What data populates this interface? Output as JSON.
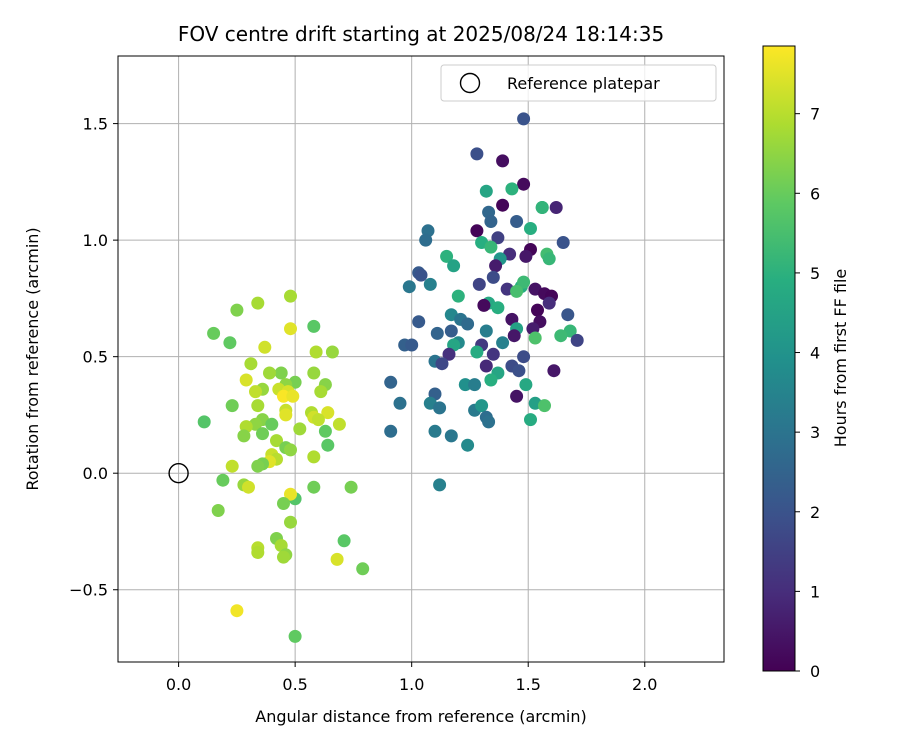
{
  "chart_data": {
    "type": "scatter",
    "title": "FOV centre drift starting at 2025/08/24 18:14:35",
    "xlabel": "Angular distance from reference (arcmin)",
    "ylabel": "Rotation from reference (arcmin)",
    "xlim": [
      -0.26,
      2.34
    ],
    "ylim": [
      -0.81,
      1.79
    ],
    "x_ticks": [
      0.0,
      0.5,
      1.0,
      1.5,
      2.0
    ],
    "x_tick_labels": [
      "0.0",
      "0.5",
      "1.0",
      "1.5",
      "2.0"
    ],
    "y_ticks": [
      -0.5,
      0.0,
      0.5,
      1.0,
      1.5
    ],
    "y_tick_labels": [
      "−0.5",
      "0.0",
      "0.5",
      "1.0",
      "1.5"
    ],
    "grid": true,
    "legend": {
      "placement": "top-right",
      "entries": [
        "Reference platepar"
      ]
    },
    "colorbar": {
      "label": "Hours from first FF file",
      "range": [
        0,
        7.85
      ],
      "ticks": [
        0,
        1,
        2,
        3,
        4,
        5,
        6,
        7
      ],
      "tick_labels": [
        "0",
        "1",
        "2",
        "3",
        "4",
        "5",
        "6",
        "7"
      ],
      "colormap": "viridis"
    },
    "reference": {
      "name": "Reference platepar",
      "x": 0.0,
      "y": 0.0
    },
    "series": [
      {
        "name": "FF files",
        "points": [
          [
            1.48,
            1.52,
            2.0
          ],
          [
            1.28,
            1.37,
            1.9
          ],
          [
            1.39,
            1.34,
            0.3
          ],
          [
            1.48,
            1.24,
            0.2
          ],
          [
            1.43,
            1.22,
            5.0
          ],
          [
            1.32,
            1.21,
            4.6
          ],
          [
            1.62,
            1.14,
            0.8
          ],
          [
            1.39,
            1.15,
            0.1
          ],
          [
            1.56,
            1.14,
            5.0
          ],
          [
            1.33,
            1.12,
            2.6
          ],
          [
            1.45,
            1.08,
            2.3
          ],
          [
            1.34,
            1.08,
            2.5
          ],
          [
            1.51,
            1.05,
            4.9
          ],
          [
            1.28,
            1.04,
            0.1
          ],
          [
            1.07,
            1.04,
            2.9
          ],
          [
            1.37,
            1.01,
            1.5
          ],
          [
            1.3,
            0.99,
            4.9
          ],
          [
            1.06,
            1.0,
            2.8
          ],
          [
            1.65,
            0.99,
            2.0
          ],
          [
            1.34,
            0.97,
            5.2
          ],
          [
            1.51,
            0.96,
            0.1
          ],
          [
            1.58,
            0.94,
            5.4
          ],
          [
            1.42,
            0.94,
            1.0
          ],
          [
            1.49,
            0.93,
            0.5
          ],
          [
            1.59,
            0.92,
            5.2
          ],
          [
            1.15,
            0.93,
            5.0
          ],
          [
            1.38,
            0.92,
            4.1
          ],
          [
            1.18,
            0.89,
            4.5
          ],
          [
            1.36,
            0.89,
            0.6
          ],
          [
            1.03,
            0.86,
            2.2
          ],
          [
            1.04,
            0.85,
            2.0
          ],
          [
            1.35,
            0.84,
            1.8
          ],
          [
            1.29,
            0.81,
            1.6
          ],
          [
            1.08,
            0.81,
            3.4
          ],
          [
            0.99,
            0.8,
            3.1
          ],
          [
            1.47,
            0.8,
            4.9
          ],
          [
            1.41,
            0.79,
            1.2
          ],
          [
            1.53,
            0.79,
            0.4
          ],
          [
            1.57,
            0.77,
            0.2
          ],
          [
            1.6,
            0.76,
            0.1
          ],
          [
            1.2,
            0.76,
            5.0
          ],
          [
            1.48,
            0.82,
            5.3
          ],
          [
            1.45,
            0.78,
            5.5
          ],
          [
            1.33,
            0.73,
            4.7
          ],
          [
            1.31,
            0.72,
            0.2
          ],
          [
            1.59,
            0.73,
            1.0
          ],
          [
            1.37,
            0.71,
            4.9
          ],
          [
            1.54,
            0.7,
            0.1
          ],
          [
            1.67,
            0.68,
            2.1
          ],
          [
            1.17,
            0.68,
            3.6
          ],
          [
            1.21,
            0.66,
            3.0
          ],
          [
            1.43,
            0.66,
            0.4
          ],
          [
            1.55,
            0.65,
            0.3
          ],
          [
            1.03,
            0.65,
            2.2
          ],
          [
            1.24,
            0.64,
            2.7
          ],
          [
            1.45,
            0.62,
            4.5
          ],
          [
            1.52,
            0.62,
            0.6
          ],
          [
            1.17,
            0.61,
            2.3
          ],
          [
            1.11,
            0.6,
            2.5
          ],
          [
            1.32,
            0.61,
            3.3
          ],
          [
            1.68,
            0.61,
            5.2
          ],
          [
            1.64,
            0.59,
            5.3
          ],
          [
            1.44,
            0.59,
            0.5
          ],
          [
            1.53,
            0.58,
            5.6
          ],
          [
            1.71,
            0.57,
            1.6
          ],
          [
            1.2,
            0.56,
            3.7
          ],
          [
            1.39,
            0.56,
            3.4
          ],
          [
            0.97,
            0.55,
            2.4
          ],
          [
            1.0,
            0.55,
            2.2
          ],
          [
            1.3,
            0.55,
            1.3
          ],
          [
            1.18,
            0.55,
            4.6
          ],
          [
            1.16,
            0.51,
            1.1
          ],
          [
            1.28,
            0.52,
            4.8
          ],
          [
            1.35,
            0.51,
            1.2
          ],
          [
            1.48,
            0.5,
            1.8
          ],
          [
            1.1,
            0.48,
            3.0
          ],
          [
            1.13,
            0.47,
            1.7
          ],
          [
            1.32,
            0.46,
            0.9
          ],
          [
            1.43,
            0.46,
            1.8
          ],
          [
            1.61,
            0.44,
            0.5
          ],
          [
            1.46,
            0.44,
            1.9
          ],
          [
            1.37,
            0.43,
            4.6
          ],
          [
            1.34,
            0.4,
            4.9
          ],
          [
            0.91,
            0.39,
            2.5
          ],
          [
            1.23,
            0.38,
            3.9
          ],
          [
            1.27,
            0.38,
            3.3
          ],
          [
            1.49,
            0.38,
            4.7
          ],
          [
            1.1,
            0.34,
            2.4
          ],
          [
            1.45,
            0.33,
            0.4
          ],
          [
            1.53,
            0.3,
            4.4
          ],
          [
            0.95,
            0.3,
            2.9
          ],
          [
            1.08,
            0.3,
            3.4
          ],
          [
            1.12,
            0.28,
            3.0
          ],
          [
            1.27,
            0.27,
            3.2
          ],
          [
            1.3,
            0.29,
            4.1
          ],
          [
            1.57,
            0.29,
            5.6
          ],
          [
            1.32,
            0.24,
            2.8
          ],
          [
            1.51,
            0.23,
            4.8
          ],
          [
            1.33,
            0.22,
            2.9
          ],
          [
            0.91,
            0.18,
            2.8
          ],
          [
            1.1,
            0.18,
            3.2
          ],
          [
            1.17,
            0.16,
            3.1
          ],
          [
            1.24,
            0.12,
            3.7
          ],
          [
            1.12,
            -0.05,
            3.4
          ],
          [
            1.56,
            1.14,
            5.1
          ],
          [
            0.48,
            0.76,
            6.8
          ],
          [
            0.34,
            0.73,
            6.8
          ],
          [
            0.25,
            0.7,
            6.3
          ],
          [
            0.58,
            0.63,
            5.8
          ],
          [
            0.15,
            0.6,
            6.0
          ],
          [
            0.48,
            0.62,
            7.5
          ],
          [
            0.22,
            0.56,
            5.9
          ],
          [
            0.37,
            0.54,
            7.3
          ],
          [
            0.59,
            0.52,
            6.9
          ],
          [
            0.66,
            0.52,
            6.6
          ],
          [
            0.31,
            0.47,
            6.8
          ],
          [
            0.44,
            0.43,
            6.3
          ],
          [
            0.58,
            0.43,
            6.6
          ],
          [
            0.39,
            0.43,
            6.7
          ],
          [
            0.29,
            0.4,
            7.4
          ],
          [
            0.63,
            0.38,
            6.4
          ],
          [
            0.5,
            0.39,
            6.2
          ],
          [
            0.46,
            0.38,
            6.5
          ],
          [
            0.36,
            0.36,
            6.6
          ],
          [
            0.43,
            0.36,
            7.2
          ],
          [
            0.33,
            0.35,
            7.1
          ],
          [
            0.47,
            0.35,
            7.4
          ],
          [
            0.61,
            0.35,
            6.8
          ],
          [
            0.45,
            0.33,
            7.8
          ],
          [
            0.49,
            0.33,
            7.6
          ],
          [
            0.23,
            0.29,
            6.1
          ],
          [
            0.34,
            0.29,
            6.8
          ],
          [
            0.46,
            0.27,
            7.2
          ],
          [
            0.57,
            0.26,
            6.9
          ],
          [
            0.64,
            0.26,
            7.4
          ],
          [
            0.46,
            0.25,
            7.5
          ],
          [
            0.58,
            0.24,
            7.3
          ],
          [
            0.6,
            0.23,
            7.1
          ],
          [
            0.11,
            0.22,
            5.7
          ],
          [
            0.36,
            0.23,
            6.4
          ],
          [
            0.33,
            0.21,
            6.5
          ],
          [
            0.4,
            0.21,
            6.0
          ],
          [
            0.69,
            0.21,
            7.1
          ],
          [
            0.29,
            0.2,
            6.9
          ],
          [
            0.52,
            0.19,
            6.7
          ],
          [
            0.63,
            0.18,
            5.9
          ],
          [
            0.36,
            0.17,
            6.1
          ],
          [
            0.28,
            0.16,
            6.4
          ],
          [
            0.42,
            0.14,
            6.8
          ],
          [
            0.46,
            0.11,
            6.2
          ],
          [
            0.48,
            0.1,
            6.5
          ],
          [
            0.4,
            0.08,
            7.2
          ],
          [
            0.64,
            0.12,
            5.8
          ],
          [
            0.42,
            0.06,
            7.0
          ],
          [
            0.39,
            0.05,
            7.5
          ],
          [
            0.58,
            0.07,
            6.9
          ],
          [
            0.36,
            0.04,
            6.2
          ],
          [
            0.23,
            0.03,
            7.1
          ],
          [
            0.34,
            0.03,
            6.3
          ],
          [
            0.19,
            -0.03,
            6.0
          ],
          [
            0.28,
            -0.05,
            6.6
          ],
          [
            0.3,
            -0.06,
            7.3
          ],
          [
            0.74,
            -0.06,
            6.2
          ],
          [
            0.58,
            -0.06,
            6.1
          ],
          [
            0.5,
            -0.11,
            5.7
          ],
          [
            0.48,
            -0.09,
            7.6
          ],
          [
            0.45,
            -0.13,
            6.2
          ],
          [
            0.17,
            -0.16,
            6.3
          ],
          [
            0.48,
            -0.21,
            6.6
          ],
          [
            0.71,
            -0.29,
            5.8
          ],
          [
            0.42,
            -0.28,
            6.3
          ],
          [
            0.44,
            -0.31,
            6.8
          ],
          [
            0.34,
            -0.32,
            7.0
          ],
          [
            0.34,
            -0.34,
            6.9
          ],
          [
            0.46,
            -0.35,
            6.5
          ],
          [
            0.45,
            -0.36,
            6.7
          ],
          [
            0.68,
            -0.37,
            7.4
          ],
          [
            0.79,
            -0.41,
            6.1
          ],
          [
            0.25,
            -0.59,
            7.7
          ],
          [
            0.5,
            -0.7,
            5.9
          ]
        ]
      }
    ]
  }
}
